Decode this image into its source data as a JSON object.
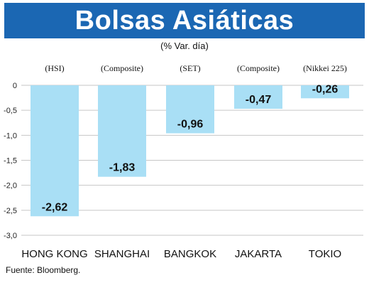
{
  "header": {
    "title": "Bolsas Asiáticas",
    "subtitle": "(% Var. día)"
  },
  "footer": {
    "source": "Fuente: Bloomberg."
  },
  "colors": {
    "banner": "#1b67b3",
    "bar": "#a9dff5",
    "grid": "#c6c6c6"
  },
  "chart_data": {
    "type": "bar",
    "title": "Bolsas Asiáticas",
    "subtitle": "(% Var. día)",
    "categories": [
      "HONG KONG",
      "SHANGHAI",
      "BANGKOK",
      "JAKARTA",
      "TOKIO"
    ],
    "indices": [
      "(HSI)",
      "(Composite)",
      "(SET)",
      "(Composite)",
      "(Nikkei 225)"
    ],
    "values": [
      -2.62,
      -1.83,
      -0.96,
      -0.47,
      -0.26
    ],
    "value_labels": [
      "-2,62",
      "-1,83",
      "-0,96",
      "-0,47",
      "-0,26"
    ],
    "yticks": [
      0,
      -0.5,
      -1.0,
      -1.5,
      -2.0,
      -2.5,
      -3.0
    ],
    "ytick_labels": [
      "0",
      "-0,5",
      "-1,0",
      "-1,5",
      "-2,0",
      "-2,5",
      "-3,0"
    ],
    "ylim": [
      -3.0,
      0
    ],
    "grid": true,
    "legend": "none"
  }
}
